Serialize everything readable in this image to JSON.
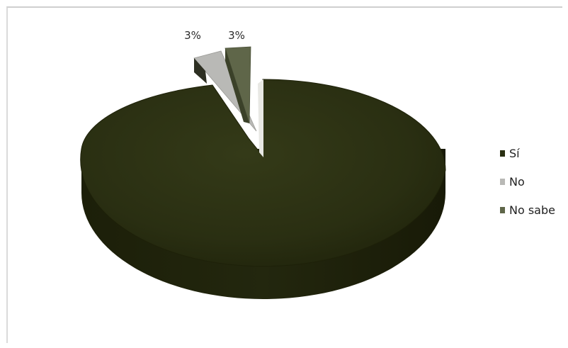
{
  "chart_data": {
    "type": "pie",
    "style": "3d-exploded",
    "categories": [
      "Sí",
      "No",
      "No sabe"
    ],
    "values": [
      94,
      3,
      3
    ],
    "data_labels": [
      "",
      "3%",
      "3%"
    ],
    "colors": {
      "Sí": "#2a2f12",
      "No": "#b9b9b6",
      "No sabe": "#5f6649",
      "side_dark": "#1a1d08"
    },
    "legend": {
      "placement": "right",
      "entries": [
        "Sí",
        "No",
        "No sabe"
      ]
    }
  }
}
